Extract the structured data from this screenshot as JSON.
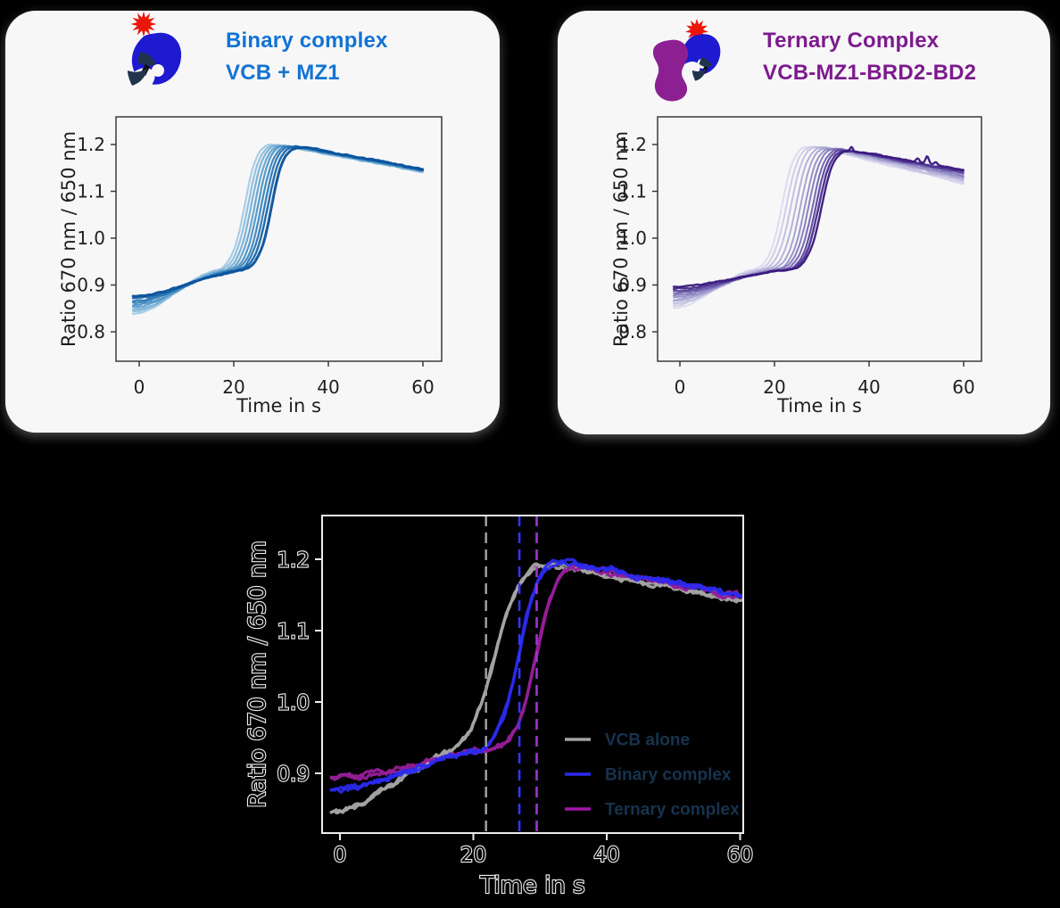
{
  "page": {
    "background": "#000000",
    "panel_background": "#f7f7f8"
  },
  "panels": {
    "binary": {
      "title_line1": "Binary complex",
      "title_line2": "VCB + MZ1",
      "title_color": "#1273d2",
      "icon": {
        "vcb_color": "#1d1ad0",
        "label_color": "#ec1509",
        "ligand_color": "#20344b",
        "ligand_dark_color": "#0b0b10"
      }
    },
    "ternary": {
      "title_line1": "Ternary Complex",
      "title_line2": "VCB-MZ1-BRD2-BD2",
      "title_color": "#7c1b8d",
      "icon": {
        "vcb_color": "#1d1ad0",
        "label_color": "#ec1509",
        "ligand_color": "#20344b",
        "ligand_dark_color": "#0b0b10",
        "brd2_color": "#8c2093"
      }
    }
  },
  "chart_data": [
    {
      "id": "binary",
      "type": "line",
      "title": "Binary complex VCB + MZ1",
      "xlabel": "Time in s",
      "ylabel": "Ratio 670 nm / 650 nm",
      "xlim": [
        -4.9,
        64.0
      ],
      "ylim": [
        0.737,
        1.259
      ],
      "xticks": [
        0,
        20,
        40,
        60
      ],
      "xtick_labels": [
        "0",
        "20",
        "40",
        "60"
      ],
      "yticks": [
        0.8,
        0.9,
        1.0,
        1.1,
        1.2
      ],
      "ytick_labels": [
        "0.8",
        "0.9",
        "1.0",
        "1.1",
        "1.2"
      ],
      "grid": false,
      "series_note": "dilution series of sigmoid aggregation traces, light to dark blue",
      "series": [
        {
          "name": "trace-1",
          "color": "#a6cce5",
          "start_ratio": 0.838,
          "plateau_ratio": 0.93,
          "midpoint_s": 22.4,
          "width_s": 1.25,
          "peak_ratio": 1.204,
          "end_ratio": 1.141,
          "linewidth": 2.2
        },
        {
          "name": "trace-2",
          "color": "#90bedd",
          "start_ratio": 0.843,
          "plateau_ratio": 0.93,
          "midpoint_s": 23.1,
          "width_s": 1.25,
          "peak_ratio": 1.203,
          "end_ratio": 1.142,
          "linewidth": 2.2
        },
        {
          "name": "trace-3",
          "color": "#7ab0d5",
          "start_ratio": 0.847,
          "plateau_ratio": 0.93,
          "midpoint_s": 23.8,
          "width_s": 1.25,
          "peak_ratio": 1.202,
          "end_ratio": 1.143,
          "linewidth": 2.2
        },
        {
          "name": "trace-4",
          "color": "#64a3cd",
          "start_ratio": 0.852,
          "plateau_ratio": 0.93,
          "midpoint_s": 24.5,
          "width_s": 1.25,
          "peak_ratio": 1.202,
          "end_ratio": 1.143,
          "linewidth": 2.2
        },
        {
          "name": "trace-5",
          "color": "#4f95c6",
          "start_ratio": 0.857,
          "plateau_ratio": 0.93,
          "midpoint_s": 25.2,
          "width_s": 1.25,
          "peak_ratio": 1.201,
          "end_ratio": 1.144,
          "linewidth": 2.2
        },
        {
          "name": "trace-6",
          "color": "#3b86bd",
          "start_ratio": 0.862,
          "plateau_ratio": 0.93,
          "midpoint_s": 25.9,
          "width_s": 1.25,
          "peak_ratio": 1.2,
          "end_ratio": 1.145,
          "linewidth": 2.2
        },
        {
          "name": "trace-7",
          "color": "#2b76b4",
          "start_ratio": 0.866,
          "plateau_ratio": 0.93,
          "midpoint_s": 26.6,
          "width_s": 1.25,
          "peak_ratio": 1.2,
          "end_ratio": 1.146,
          "linewidth": 2.2
        },
        {
          "name": "trace-8",
          "color": "#1b66aa",
          "start_ratio": 0.871,
          "plateau_ratio": 0.93,
          "midpoint_s": 27.3,
          "width_s": 1.25,
          "peak_ratio": 1.199,
          "end_ratio": 1.146,
          "linewidth": 2.4
        },
        {
          "name": "trace-9",
          "color": "#0a529c",
          "start_ratio": 0.876,
          "plateau_ratio": 0.93,
          "midpoint_s": 28.1,
          "width_s": 1.25,
          "peak_ratio": 1.198,
          "end_ratio": 1.147,
          "linewidth": 3.0
        }
      ]
    },
    {
      "id": "ternary",
      "type": "line",
      "title": "Ternary Complex VCB-MZ1-BRD2-BD2",
      "xlabel": "Time in s",
      "ylabel": "Ratio 670 nm / 650 nm",
      "xlim": [
        -4.7,
        63.8
      ],
      "ylim": [
        0.737,
        1.259
      ],
      "xticks": [
        0,
        20,
        40,
        60
      ],
      "xtick_labels": [
        "0",
        "20",
        "40",
        "60"
      ],
      "yticks": [
        0.8,
        0.9,
        1.0,
        1.1,
        1.2
      ],
      "ytick_labels": [
        "0.8",
        "0.9",
        "1.0",
        "1.1",
        "1.2"
      ],
      "grid": false,
      "series_note": "dilution series of sigmoid aggregation traces, light to dark purple",
      "series": [
        {
          "name": "trace-1",
          "color": "#dcdaee",
          "start_ratio": 0.851,
          "plateau_ratio": 0.932,
          "midpoint_s": 21.7,
          "width_s": 1.25,
          "peak_ratio": 1.201,
          "end_ratio": 1.116,
          "linewidth": 2.0
        },
        {
          "name": "trace-2",
          "color": "#cfcce7",
          "start_ratio": 0.856,
          "plateau_ratio": 0.932,
          "midpoint_s": 22.6,
          "width_s": 1.25,
          "peak_ratio": 1.2,
          "end_ratio": 1.119,
          "linewidth": 2.0
        },
        {
          "name": "trace-3",
          "color": "#c2bfe0",
          "start_ratio": 0.86,
          "plateau_ratio": 0.932,
          "midpoint_s": 23.6,
          "width_s": 1.25,
          "peak_ratio": 1.199,
          "end_ratio": 1.122,
          "linewidth": 2.0
        },
        {
          "name": "trace-4",
          "color": "#b3b0d8",
          "start_ratio": 0.865,
          "plateau_ratio": 0.932,
          "midpoint_s": 24.6,
          "width_s": 1.25,
          "peak_ratio": 1.198,
          "end_ratio": 1.125,
          "linewidth": 2.0
        },
        {
          "name": "trace-5",
          "color": "#a5a1cf",
          "start_ratio": 0.869,
          "plateau_ratio": 0.932,
          "midpoint_s": 25.6,
          "width_s": 1.25,
          "peak_ratio": 1.197,
          "end_ratio": 1.128,
          "linewidth": 2.0
        },
        {
          "name": "trace-6",
          "color": "#958fc6",
          "start_ratio": 0.874,
          "plateau_ratio": 0.932,
          "midpoint_s": 26.5,
          "width_s": 1.25,
          "peak_ratio": 1.196,
          "end_ratio": 1.131,
          "linewidth": 2.0
        },
        {
          "name": "trace-7",
          "color": "#847bbb",
          "start_ratio": 0.878,
          "plateau_ratio": 0.932,
          "midpoint_s": 27.3,
          "width_s": 1.25,
          "peak_ratio": 1.195,
          "end_ratio": 1.134,
          "linewidth": 2.0
        },
        {
          "name": "trace-8",
          "color": "#7263ae",
          "start_ratio": 0.883,
          "plateau_ratio": 0.932,
          "midpoint_s": 28.1,
          "width_s": 1.25,
          "peak_ratio": 1.193,
          "end_ratio": 1.137,
          "linewidth": 2.0
        },
        {
          "name": "trace-9",
          "color": "#5e4aa0",
          "start_ratio": 0.887,
          "plateau_ratio": 0.932,
          "midpoint_s": 28.8,
          "width_s": 1.25,
          "peak_ratio": 1.192,
          "end_ratio": 1.14,
          "linewidth": 2.2
        },
        {
          "name": "trace-10",
          "color": "#4a2f90",
          "start_ratio": 0.892,
          "plateau_ratio": 0.932,
          "midpoint_s": 29.4,
          "width_s": 1.25,
          "peak_ratio": 1.191,
          "end_ratio": 1.143,
          "linewidth": 2.4
        },
        {
          "name": "trace-11",
          "color": "#39197d",
          "start_ratio": 0.896,
          "plateau_ratio": 0.932,
          "midpoint_s": 30.0,
          "width_s": 1.25,
          "peak_ratio": 1.19,
          "end_ratio": 1.146,
          "linewidth": 2.4,
          "spikes": [
            {
              "t_s": 36.3,
              "amp": 0.01
            },
            {
              "t_s": 50.3,
              "amp": 0.008
            },
            {
              "t_s": 52.3,
              "amp": 0.016
            },
            {
              "t_s": 54.1,
              "amp": 0.007
            }
          ]
        }
      ]
    },
    {
      "id": "overlay",
      "type": "line",
      "title": "",
      "xlabel": "Time in s",
      "ylabel": "Ratio 670 nm / 650 nm",
      "xlim": [
        -2.3,
        60.5
      ],
      "ylim": [
        0.816,
        1.263
      ],
      "xticks": [
        0,
        20,
        40,
        60
      ],
      "xtick_labels": [
        "0",
        "20",
        "40",
        "60"
      ],
      "yticks": [
        0.9,
        1.0,
        1.1,
        1.2
      ],
      "ytick_labels": [
        "0.9",
        "1.0",
        "1.1",
        "1.2"
      ],
      "grid": false,
      "series": [
        {
          "name": "VCB alone",
          "color": "#a4a4a4",
          "start_ratio": 0.845,
          "plateau_ratio": 0.924,
          "midpoint_s": 23.4,
          "width_s": 1.9,
          "peak_ratio": 1.2,
          "end_ratio": 1.142,
          "linewidth": 3.3,
          "replicates": 2
        },
        {
          "name": "Ternary complex",
          "color": "#951d98",
          "start_ratio": 0.893,
          "plateau_ratio": 0.934,
          "midpoint_s": 29.6,
          "width_s": 1.4,
          "peak_ratio": 1.193,
          "end_ratio": 1.147,
          "linewidth": 3.3,
          "replicates": 2
        },
        {
          "name": "Binary complex",
          "color": "#2a2af0",
          "start_ratio": 0.876,
          "plateau_ratio": 0.93,
          "midpoint_s": 27.0,
          "width_s": 1.4,
          "peak_ratio": 1.201,
          "end_ratio": 1.15,
          "linewidth": 3.3,
          "replicates": 2,
          "opacity": 0.92
        }
      ],
      "vlines": [
        {
          "x_s": 21.9,
          "color": "#9a9a9a",
          "style": "dashed"
        },
        {
          "x_s": 26.9,
          "color": "#3136f0",
          "style": "dashed"
        },
        {
          "x_s": 29.5,
          "color": "#9b35d2",
          "style": "dashed"
        }
      ],
      "legend": [
        {
          "label": "VCB alone",
          "color": "#a4a4a4"
        },
        {
          "label": "Binary complex",
          "color": "#2a2af0"
        },
        {
          "label": "Ternary complex",
          "color": "#a316a8"
        }
      ],
      "legend_text_color": "#17334e"
    }
  ]
}
